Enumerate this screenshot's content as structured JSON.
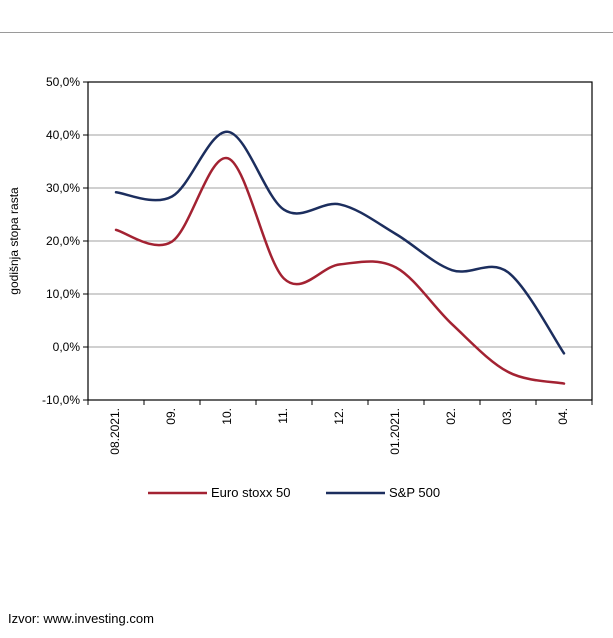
{
  "source_note": "Izvor: www.investing.com",
  "colors": {
    "euro": "#a32232",
    "sp": "#1c2e5e",
    "grid": "#a0a0a0"
  },
  "chart_data": {
    "type": "line",
    "ylabel": "godišnja stopa rasta",
    "xlabel": "",
    "ylim": [
      -10,
      50
    ],
    "yticks": [
      -10,
      0,
      10,
      20,
      30,
      40,
      50
    ],
    "ytick_labels": [
      "-10,0%",
      "0,0%",
      "10,0%",
      "20,0%",
      "30,0%",
      "40,0%",
      "50,0%"
    ],
    "grid": "horizontal",
    "legend_position": "bottom",
    "categories": [
      "08.2021.",
      "09.",
      "10.",
      "11.",
      "12.",
      "01.2021.",
      "02.",
      "03.",
      "04."
    ],
    "series": [
      {
        "name": "Euro stoxx 50",
        "color": "#a32232",
        "values": [
          22.1,
          19.9,
          35.6,
          12.9,
          15.6,
          15.0,
          4.3,
          -4.7,
          -6.9
        ]
      },
      {
        "name": "S&P 500",
        "color": "#1c2e5e",
        "values": [
          29.2,
          28.4,
          40.6,
          25.9,
          26.9,
          21.3,
          14.5,
          14.1,
          -1.2
        ]
      }
    ]
  }
}
